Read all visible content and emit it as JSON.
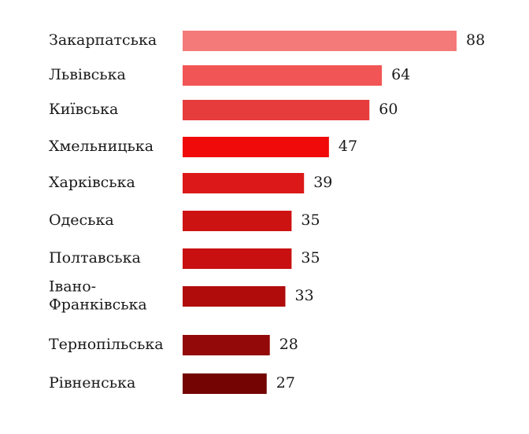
{
  "chart_data": {
    "type": "bar",
    "orientation": "horizontal",
    "categories": [
      "Закарпатська",
      "Львівська",
      "Київська",
      "Хмельницька",
      "Харківська",
      "Одеська",
      "Полтавська",
      "Івано-Франківська",
      "Тернопільська",
      "Рівненська"
    ],
    "category_lines": [
      [
        "Закарпатська"
      ],
      [
        "Львівська"
      ],
      [
        "Київська"
      ],
      [
        "Хмельницька"
      ],
      [
        "Харківська"
      ],
      [
        "Одеська"
      ],
      [
        "Полтавська"
      ],
      [
        "Івано-",
        "Франківська"
      ],
      [
        "Тернопільська"
      ],
      [
        "Рівненська"
      ]
    ],
    "values": [
      88,
      64,
      60,
      47,
      39,
      35,
      35,
      33,
      28,
      27
    ],
    "value_labels": [
      "88",
      "64",
      "60",
      "47",
      "39",
      "35",
      "35",
      "33",
      "28",
      "27"
    ],
    "colors": [
      "#f47a7a",
      "#f25555",
      "#e63c3c",
      "#f00a0a",
      "#dc1818",
      "#cd1212",
      "#c81010",
      "#b00c0c",
      "#930808",
      "#740404"
    ],
    "title": "",
    "xlabel": "",
    "ylabel": "",
    "xlim": [
      0,
      88
    ],
    "grid": false,
    "legend": "none"
  }
}
